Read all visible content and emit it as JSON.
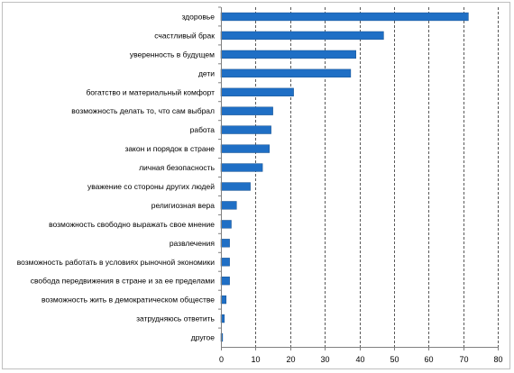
{
  "chart_data": {
    "type": "bar",
    "orientation": "horizontal",
    "categories": [
      "здоровье",
      "счастливый брак",
      "уверенность в будущем",
      "дети",
      "богатство и материальный комфорт",
      "возможность делать то, что сам выбрал",
      "работа",
      "закон и порядок в стране",
      "личная безопасность",
      "уважение со стороны других людей",
      "религиозная вера",
      "возможность свободно выражать свое мнение",
      "развлечения",
      "возможность работать в условиях рыночной экономики",
      "свобода передвижения в стране и за ее пределами",
      "возможность жить в демократическом обществе",
      "затрудняюсь ответить",
      "другое"
    ],
    "values": [
      71.5,
      47,
      39,
      37.5,
      21,
      15,
      14.5,
      14,
      12,
      8.5,
      4.5,
      3,
      2.5,
      2.5,
      2.5,
      1.5,
      1,
      0.5
    ],
    "xlim": [
      0,
      80
    ],
    "xticks": [
      0,
      10,
      20,
      30,
      40,
      50,
      60,
      70,
      80
    ],
    "title": "",
    "xlabel": "",
    "ylabel": "",
    "grid": "vertical dashed",
    "legend": "none",
    "bar_color": "#1f6fc5",
    "bar_stroke_color": "#16508f",
    "grid_color": "#5a5a5a",
    "axis_color": "#808080"
  }
}
